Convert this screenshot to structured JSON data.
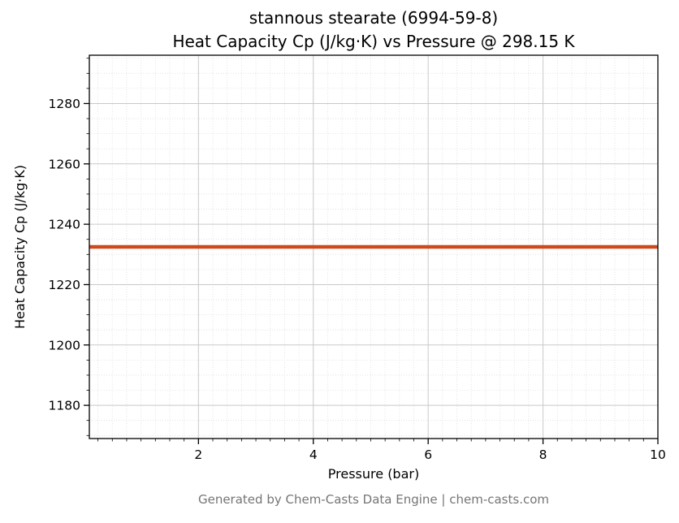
{
  "footer": "Generated by Chem-Casts Data Engine | chem-casts.com",
  "colors": {
    "line": "#d0491b",
    "grid_major": "#c9c9c9",
    "grid_minor": "#dedede",
    "axis": "#000000",
    "footer_text": "#757575"
  },
  "chart_data": {
    "type": "line",
    "title": "stannous stearate (6994-59-8)",
    "subtitle": "Heat Capacity Cp (J/kg·K) vs Pressure @ 298.15 K",
    "xlabel": "Pressure (bar)",
    "ylabel": "Heat Capacity Cp (J/kg·K)",
    "xlim": [
      0.1,
      10
    ],
    "ylim": [
      1169,
      1296
    ],
    "xticks": [
      2,
      4,
      6,
      8,
      10
    ],
    "yticks": [
      1180,
      1200,
      1220,
      1240,
      1260,
      1280
    ],
    "x_minor_step": 0.25,
    "y_minor_step": 5,
    "grid": "both",
    "legend": "none",
    "series": [
      {
        "name": "Heat Capacity Cp",
        "x": [
          0.1,
          10
        ],
        "y": [
          1232.5,
          1232.5
        ],
        "color": "#d0491b",
        "line_width": 4.5
      }
    ]
  }
}
